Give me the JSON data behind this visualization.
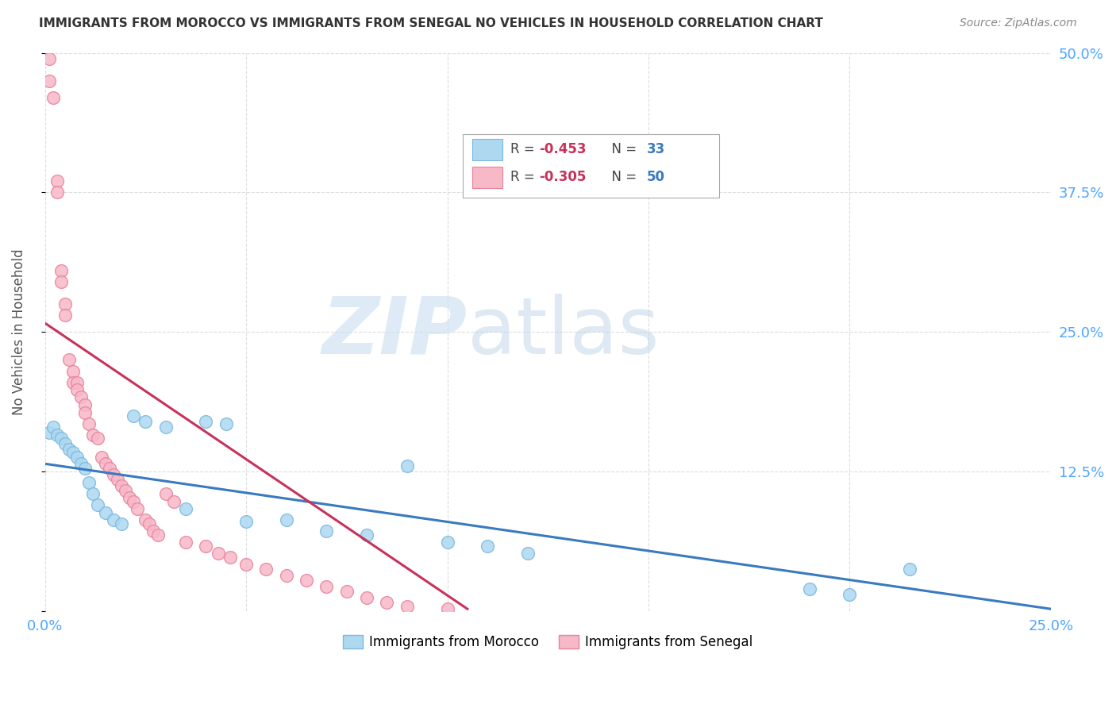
{
  "title": "IMMIGRANTS FROM MOROCCO VS IMMIGRANTS FROM SENEGAL NO VEHICLES IN HOUSEHOLD CORRELATION CHART",
  "source": "Source: ZipAtlas.com",
  "ylabel": "No Vehicles in Household",
  "watermark_zip": "ZIP",
  "watermark_atlas": "atlas",
  "xlim": [
    0.0,
    0.25
  ],
  "ylim": [
    0.0,
    0.5
  ],
  "xticks": [
    0.0,
    0.05,
    0.1,
    0.15,
    0.2,
    0.25
  ],
  "yticks": [
    0.0,
    0.125,
    0.25,
    0.375,
    0.5
  ],
  "xtick_labels": [
    "0.0%",
    "",
    "",
    "",
    "",
    "25.0%"
  ],
  "ytick_labels_right": [
    "",
    "12.5%",
    "25.0%",
    "37.5%",
    "50.0%"
  ],
  "morocco_color": "#add8f0",
  "senegal_color": "#f7b8c8",
  "morocco_edge": "#7ab8de",
  "senegal_edge": "#e8829a",
  "line_morocco_color": "#3a7abf",
  "line_senegal_color": "#c8325a",
  "legend_r_morocco": "-0.453",
  "legend_n_morocco": "33",
  "legend_r_senegal": "-0.305",
  "legend_n_senegal": "50",
  "legend_label_morocco": "Immigrants from Morocco",
  "legend_label_senegal": "Immigrants from Senegal",
  "morocco_x": [
    0.001,
    0.002,
    0.003,
    0.004,
    0.005,
    0.006,
    0.007,
    0.008,
    0.009,
    0.01,
    0.011,
    0.012,
    0.013,
    0.015,
    0.017,
    0.019,
    0.022,
    0.025,
    0.03,
    0.035,
    0.04,
    0.045,
    0.05,
    0.06,
    0.07,
    0.08,
    0.09,
    0.1,
    0.11,
    0.12,
    0.19,
    0.2,
    0.215
  ],
  "morocco_y": [
    0.16,
    0.165,
    0.158,
    0.155,
    0.15,
    0.145,
    0.142,
    0.138,
    0.132,
    0.128,
    0.115,
    0.105,
    0.095,
    0.088,
    0.082,
    0.078,
    0.175,
    0.17,
    0.165,
    0.092,
    0.17,
    0.168,
    0.08,
    0.082,
    0.072,
    0.068,
    0.13,
    0.062,
    0.058,
    0.052,
    0.02,
    0.015,
    0.038
  ],
  "senegal_x": [
    0.001,
    0.001,
    0.002,
    0.003,
    0.003,
    0.004,
    0.004,
    0.005,
    0.005,
    0.006,
    0.007,
    0.007,
    0.008,
    0.008,
    0.009,
    0.01,
    0.01,
    0.011,
    0.012,
    0.013,
    0.014,
    0.015,
    0.016,
    0.017,
    0.018,
    0.019,
    0.02,
    0.021,
    0.022,
    0.023,
    0.025,
    0.026,
    0.027,
    0.028,
    0.03,
    0.032,
    0.035,
    0.04,
    0.043,
    0.046,
    0.05,
    0.055,
    0.06,
    0.065,
    0.07,
    0.075,
    0.08,
    0.085,
    0.09,
    0.1
  ],
  "senegal_y": [
    0.495,
    0.475,
    0.46,
    0.385,
    0.375,
    0.305,
    0.295,
    0.275,
    0.265,
    0.225,
    0.215,
    0.205,
    0.205,
    0.198,
    0.192,
    0.185,
    0.178,
    0.168,
    0.158,
    0.155,
    0.138,
    0.132,
    0.128,
    0.122,
    0.118,
    0.112,
    0.108,
    0.102,
    0.098,
    0.092,
    0.082,
    0.078,
    0.072,
    0.068,
    0.105,
    0.098,
    0.062,
    0.058,
    0.052,
    0.048,
    0.042,
    0.038,
    0.032,
    0.028,
    0.022,
    0.018,
    0.012,
    0.008,
    0.004,
    0.002
  ],
  "morocco_line_x": [
    0.0,
    0.25
  ],
  "morocco_line_y": [
    0.132,
    0.002
  ],
  "senegal_line_x": [
    0.0,
    0.105
  ],
  "senegal_line_y": [
    0.258,
    0.002
  ],
  "background_color": "#ffffff",
  "grid_color": "#dddddd",
  "tick_label_color": "#4da6ff",
  "title_color": "#333333",
  "ylabel_color": "#555555"
}
